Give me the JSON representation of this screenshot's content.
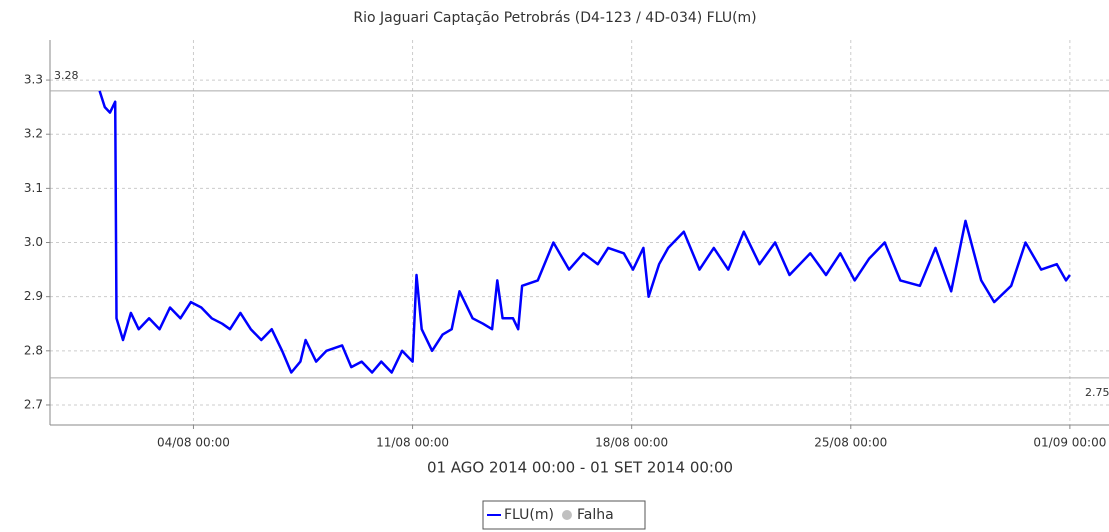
{
  "chart_data": {
    "type": "line",
    "title": "Rio Jaguari Captação Petrobrás (D4-123 / 4D-034) FLU(m)",
    "subtitle": "01 AGO 2014 00:00 - 01 SET 2014 00:00",
    "x": [
      "2014-08-01T00:00",
      "2014-08-01T04:00",
      "2014-08-01T08:00",
      "2014-08-01T12:00",
      "2014-08-01T13:00",
      "2014-08-01T18:00",
      "2014-08-02T00:00",
      "2014-08-02T06:00",
      "2014-08-02T14:00",
      "2014-08-02T22:00",
      "2014-08-03T06:00",
      "2014-08-03T14:00",
      "2014-08-03T22:00",
      "2014-08-04T06:00",
      "2014-08-04T14:00",
      "2014-08-04T22:00",
      "2014-08-05T04:00",
      "2014-08-05T12:00",
      "2014-08-05T20:00",
      "2014-08-06T04:00",
      "2014-08-06T12:00",
      "2014-08-06T20:00",
      "2014-08-07T03:00",
      "2014-08-07T10:00",
      "2014-08-07T14:00",
      "2014-08-07T22:00",
      "2014-08-08T06:00",
      "2014-08-08T18:00",
      "2014-08-09T01:00",
      "2014-08-09T09:00",
      "2014-08-09T17:00",
      "2014-08-10T00:00",
      "2014-08-10T08:00",
      "2014-08-10T16:00",
      "2014-08-11T00:00",
      "2014-08-11T03:00",
      "2014-08-11T07:00",
      "2014-08-11T15:00",
      "2014-08-11T23:00",
      "2014-08-12T06:00",
      "2014-08-12T12:00",
      "2014-08-12T22:00",
      "2014-08-13T06:00",
      "2014-08-13T13:00",
      "2014-08-13T17:00",
      "2014-08-13T21:00",
      "2014-08-14T05:00",
      "2014-08-14T09:00",
      "2014-08-14T12:00",
      "2014-08-15T00:00",
      "2014-08-15T12:00",
      "2014-08-16T00:00",
      "2014-08-16T11:00",
      "2014-08-16T22:00",
      "2014-08-17T06:00",
      "2014-08-17T18:00",
      "2014-08-18T01:00",
      "2014-08-18T09:00",
      "2014-08-18T13:00",
      "2014-08-18T21:00",
      "2014-08-19T04:00",
      "2014-08-19T16:00",
      "2014-08-20T04:00",
      "2014-08-20T15:00",
      "2014-08-21T02:00",
      "2014-08-21T14:00",
      "2014-08-22T02:00",
      "2014-08-22T14:00",
      "2014-08-23T01:00",
      "2014-08-23T17:00",
      "2014-08-24T05:00",
      "2014-08-24T16:00",
      "2014-08-25T03:00",
      "2014-08-25T14:00",
      "2014-08-26T02:00",
      "2014-08-26T14:00",
      "2014-08-27T05:00",
      "2014-08-27T17:00",
      "2014-08-28T05:00",
      "2014-08-28T16:00",
      "2014-08-29T04:00",
      "2014-08-29T14:00",
      "2014-08-30T03:00",
      "2014-08-30T14:00",
      "2014-08-31T02:00",
      "2014-08-31T14:00",
      "2014-08-31T21:00",
      "2014-09-01T00:00"
    ],
    "series": [
      {
        "name": "FLU(m)",
        "color": "#0000ff",
        "marker": "line",
        "values": [
          3.28,
          3.25,
          3.24,
          3.26,
          2.86,
          2.82,
          2.87,
          2.84,
          2.86,
          2.84,
          2.88,
          2.86,
          2.89,
          2.88,
          2.86,
          2.85,
          2.84,
          2.87,
          2.84,
          2.82,
          2.84,
          2.8,
          2.76,
          2.78,
          2.82,
          2.78,
          2.8,
          2.81,
          2.77,
          2.78,
          2.76,
          2.78,
          2.76,
          2.8,
          2.78,
          2.94,
          2.84,
          2.8,
          2.83,
          2.84,
          2.91,
          2.86,
          2.85,
          2.84,
          2.93,
          2.86,
          2.86,
          2.84,
          2.92,
          2.93,
          3.0,
          2.95,
          2.98,
          2.96,
          2.99,
          2.98,
          2.95,
          2.99,
          2.9,
          2.96,
          2.99,
          3.02,
          2.95,
          2.99,
          2.95,
          3.02,
          2.96,
          3.0,
          2.94,
          2.98,
          2.94,
          2.98,
          2.93,
          2.97,
          3.0,
          2.93,
          2.92,
          2.99,
          2.91,
          3.04,
          2.93,
          2.89,
          2.92,
          3.0,
          2.95,
          2.96,
          2.93,
          2.94
        ]
      },
      {
        "name": "Falha",
        "color": "#c0c0c0",
        "marker": "circle",
        "values": [
          null,
          null,
          null,
          null,
          null,
          null,
          null,
          null,
          null,
          null,
          null,
          null,
          null,
          null,
          null,
          null,
          null,
          null,
          null,
          null,
          null,
          null,
          null,
          null,
          null,
          null,
          null,
          null,
          null,
          null,
          null,
          null,
          null,
          null,
          null,
          null,
          null,
          null,
          null,
          null,
          null,
          null,
          null,
          null,
          null,
          null,
          null,
          null,
          null,
          null,
          null,
          null,
          null,
          null,
          null,
          null,
          null,
          null,
          null,
          null,
          null,
          null,
          null,
          null,
          null,
          null,
          null,
          null,
          null,
          null,
          null,
          null,
          null,
          null,
          null,
          null,
          null,
          null,
          null,
          null,
          null,
          null,
          null,
          null,
          null,
          null,
          null,
          null
        ]
      }
    ],
    "xlim": [
      "2014-07-30T10:00",
      "2014-09-02T06:00"
    ],
    "xticks": [
      {
        "value": "2014-08-04T00:00",
        "label": "04/08 00:00"
      },
      {
        "value": "2014-08-11T00:00",
        "label": "11/08 00:00"
      },
      {
        "value": "2014-08-18T00:00",
        "label": "18/08 00:00"
      },
      {
        "value": "2014-08-25T00:00",
        "label": "25/08 00:00"
      },
      {
        "value": "2014-09-01T00:00",
        "label": "01/09 00:00"
      }
    ],
    "ylim": [
      2.663,
      3.374
    ],
    "yticks": [
      2.7,
      2.8,
      2.9,
      {
        "value": 3,
        "label": "3.0"
      },
      3.1,
      3.2,
      3.3
    ],
    "reference_lines": [
      {
        "value": 3.28,
        "label": "3.28"
      },
      {
        "value": 2.75,
        "label": "2.75"
      }
    ],
    "grid": true
  }
}
